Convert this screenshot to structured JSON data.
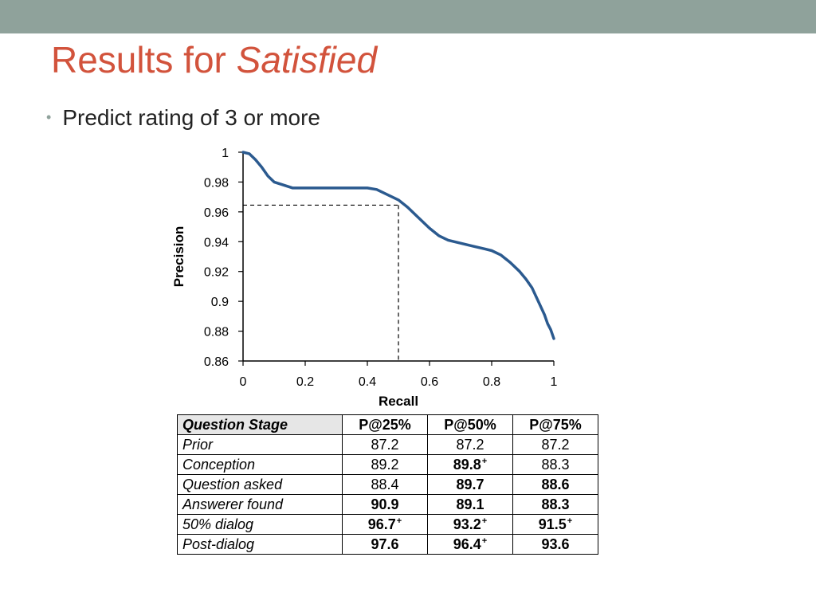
{
  "slide": {
    "title_plain": "Results for ",
    "title_emph": "Satisfied",
    "bullet": "Predict rating of 3 or more"
  },
  "colors": {
    "top_bar": "#8fa29b",
    "title": "#d2533c",
    "curve": "#2b5a8f"
  },
  "chart_data": {
    "type": "line",
    "xlabel": "Recall",
    "ylabel": "Precision",
    "xlim": [
      0,
      1
    ],
    "ylim": [
      0.86,
      1
    ],
    "x_ticks": [
      "0",
      "0.2",
      "0.4",
      "0.6",
      "0.8",
      "1"
    ],
    "y_ticks": [
      "0.86",
      "0.88",
      "0.9",
      "0.92",
      "0.94",
      "0.96",
      "0.98",
      "1"
    ],
    "grid": false,
    "legend": "none",
    "series": [
      {
        "x": [
          0,
          0.02,
          0.04,
          0.06,
          0.08,
          0.1,
          0.13,
          0.16,
          0.2,
          0.25,
          0.3,
          0.35,
          0.4,
          0.43,
          0.46,
          0.5,
          0.53,
          0.56,
          0.6,
          0.63,
          0.66,
          0.7,
          0.74,
          0.78,
          0.8,
          0.83,
          0.86,
          0.89,
          0.91,
          0.93,
          0.95,
          0.97,
          0.98,
          0.99,
          1.0
        ],
        "y": [
          1.0,
          0.999,
          0.995,
          0.99,
          0.984,
          0.98,
          0.978,
          0.976,
          0.976,
          0.976,
          0.976,
          0.976,
          0.976,
          0.975,
          0.972,
          0.968,
          0.963,
          0.957,
          0.949,
          0.944,
          0.941,
          0.939,
          0.937,
          0.935,
          0.934,
          0.931,
          0.926,
          0.92,
          0.915,
          0.909,
          0.9,
          0.891,
          0.885,
          0.881,
          0.875
        ]
      }
    ],
    "reference_point": {
      "x": 0.5,
      "y": 0.9645
    }
  },
  "table": {
    "headers": [
      "Question Stage",
      "P@25%",
      "P@50%",
      "P@75%"
    ],
    "rows": [
      {
        "stage": "Prior",
        "cells": [
          {
            "v": "87.2",
            "bold": false,
            "plus": ""
          },
          {
            "v": "87.2",
            "bold": false,
            "plus": ""
          },
          {
            "v": "87.2",
            "bold": false,
            "plus": ""
          }
        ]
      },
      {
        "stage": "Conception",
        "cells": [
          {
            "v": "89.2",
            "bold": false,
            "plus": ""
          },
          {
            "v": "89.8",
            "bold": true,
            "plus": "+"
          },
          {
            "v": "88.3",
            "bold": false,
            "plus": ""
          }
        ]
      },
      {
        "stage": "Question asked",
        "cells": [
          {
            "v": "88.4",
            "bold": false,
            "plus": ""
          },
          {
            "v": "89.7",
            "bold": true,
            "plus": ""
          },
          {
            "v": "88.6",
            "bold": true,
            "plus": ""
          }
        ]
      },
      {
        "stage": "Answerer found",
        "cells": [
          {
            "v": "90.9",
            "bold": true,
            "plus": ""
          },
          {
            "v": "89.1",
            "bold": true,
            "plus": ""
          },
          {
            "v": "88.3",
            "bold": true,
            "plus": ""
          }
        ]
      },
      {
        "stage": "50% dialog",
        "cells": [
          {
            "v": "96.7",
            "bold": true,
            "plus": "+"
          },
          {
            "v": "93.2",
            "bold": true,
            "plus": "+"
          },
          {
            "v": "91.5",
            "bold": true,
            "plus": "+"
          }
        ]
      },
      {
        "stage": "Post-dialog",
        "cells": [
          {
            "v": "97.6",
            "bold": true,
            "plus": ""
          },
          {
            "v": "96.4",
            "bold": true,
            "plus": "+"
          },
          {
            "v": "93.6",
            "bold": true,
            "plus": ""
          }
        ]
      }
    ]
  }
}
